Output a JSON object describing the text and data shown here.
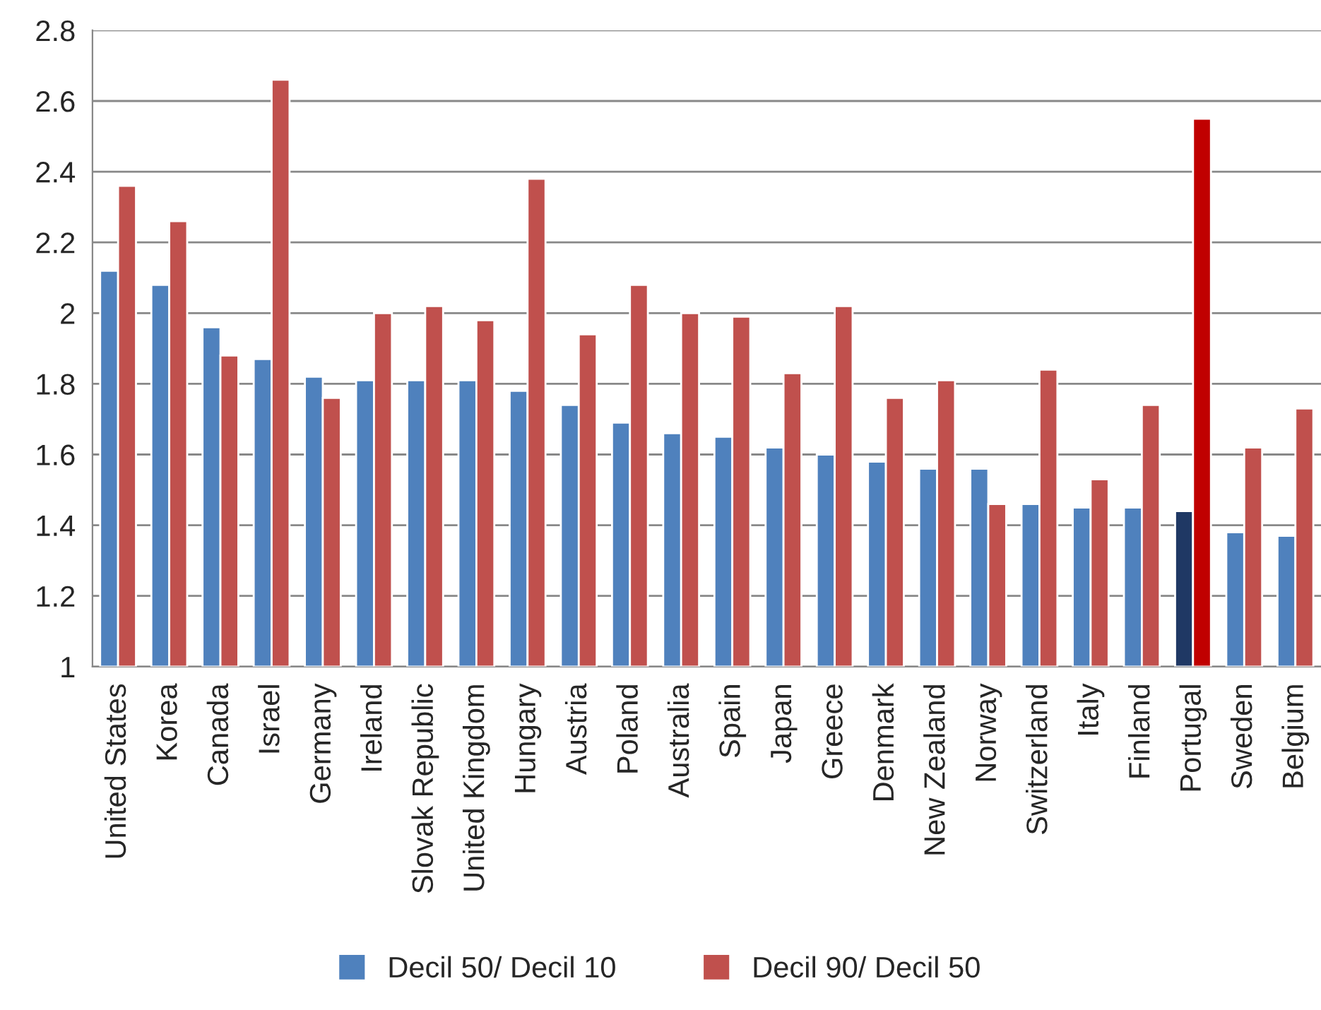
{
  "chart_data": {
    "type": "bar",
    "categories": [
      "United States",
      "Korea",
      "Canada",
      "Israel",
      "Germany",
      "Ireland",
      "Slovak Republic",
      "United Kingdom",
      "Hungary",
      "Austria",
      "Poland",
      "Australia",
      "Spain",
      "Japan",
      "Greece",
      "Denmark",
      "New Zealand",
      "Norway",
      "Switzerland",
      "Italy",
      "Finland",
      "Portugal",
      "Sweden",
      "Belgium"
    ],
    "series": [
      {
        "name": "Decil 50/ Decil 10",
        "color": "#4f81bd",
        "colors": [
          "#4f81bd",
          "#4f81bd",
          "#4f81bd",
          "#4f81bd",
          "#4f81bd",
          "#4f81bd",
          "#4f81bd",
          "#4f81bd",
          "#4f81bd",
          "#4f81bd",
          "#4f81bd",
          "#4f81bd",
          "#4f81bd",
          "#4f81bd",
          "#4f81bd",
          "#4f81bd",
          "#4f81bd",
          "#4f81bd",
          "#4f81bd",
          "#4f81bd",
          "#4f81bd",
          "#1f3864",
          "#4f81bd",
          "#4f81bd"
        ],
        "values": [
          2.12,
          2.08,
          1.96,
          1.87,
          1.82,
          1.81,
          1.81,
          1.81,
          1.78,
          1.74,
          1.69,
          1.66,
          1.65,
          1.62,
          1.6,
          1.58,
          1.56,
          1.56,
          1.46,
          1.45,
          1.45,
          1.44,
          1.38,
          1.37
        ]
      },
      {
        "name": "Decil 90/ Decil 50",
        "color": "#c0504d",
        "colors": [
          "#c0504d",
          "#c0504d",
          "#c0504d",
          "#c0504d",
          "#c0504d",
          "#c0504d",
          "#c0504d",
          "#c0504d",
          "#c0504d",
          "#c0504d",
          "#c0504d",
          "#c0504d",
          "#c0504d",
          "#c0504d",
          "#c0504d",
          "#c0504d",
          "#c0504d",
          "#c0504d",
          "#c0504d",
          "#c0504d",
          "#c0504d",
          "#c00000",
          "#c0504d",
          "#c0504d"
        ],
        "values": [
          2.36,
          2.26,
          1.88,
          2.66,
          1.76,
          2.0,
          2.02,
          1.98,
          2.38,
          1.94,
          2.08,
          2.0,
          1.99,
          1.83,
          2.02,
          1.76,
          1.81,
          1.46,
          1.84,
          1.53,
          1.74,
          2.55,
          1.62,
          1.73
        ]
      }
    ],
    "ylim": [
      1,
      2.8
    ],
    "yticks": [
      1,
      1.2,
      1.4,
      1.6,
      1.8,
      2,
      2.2,
      2.4,
      2.6,
      2.8
    ],
    "grid": "y",
    "legend": "bottom"
  }
}
